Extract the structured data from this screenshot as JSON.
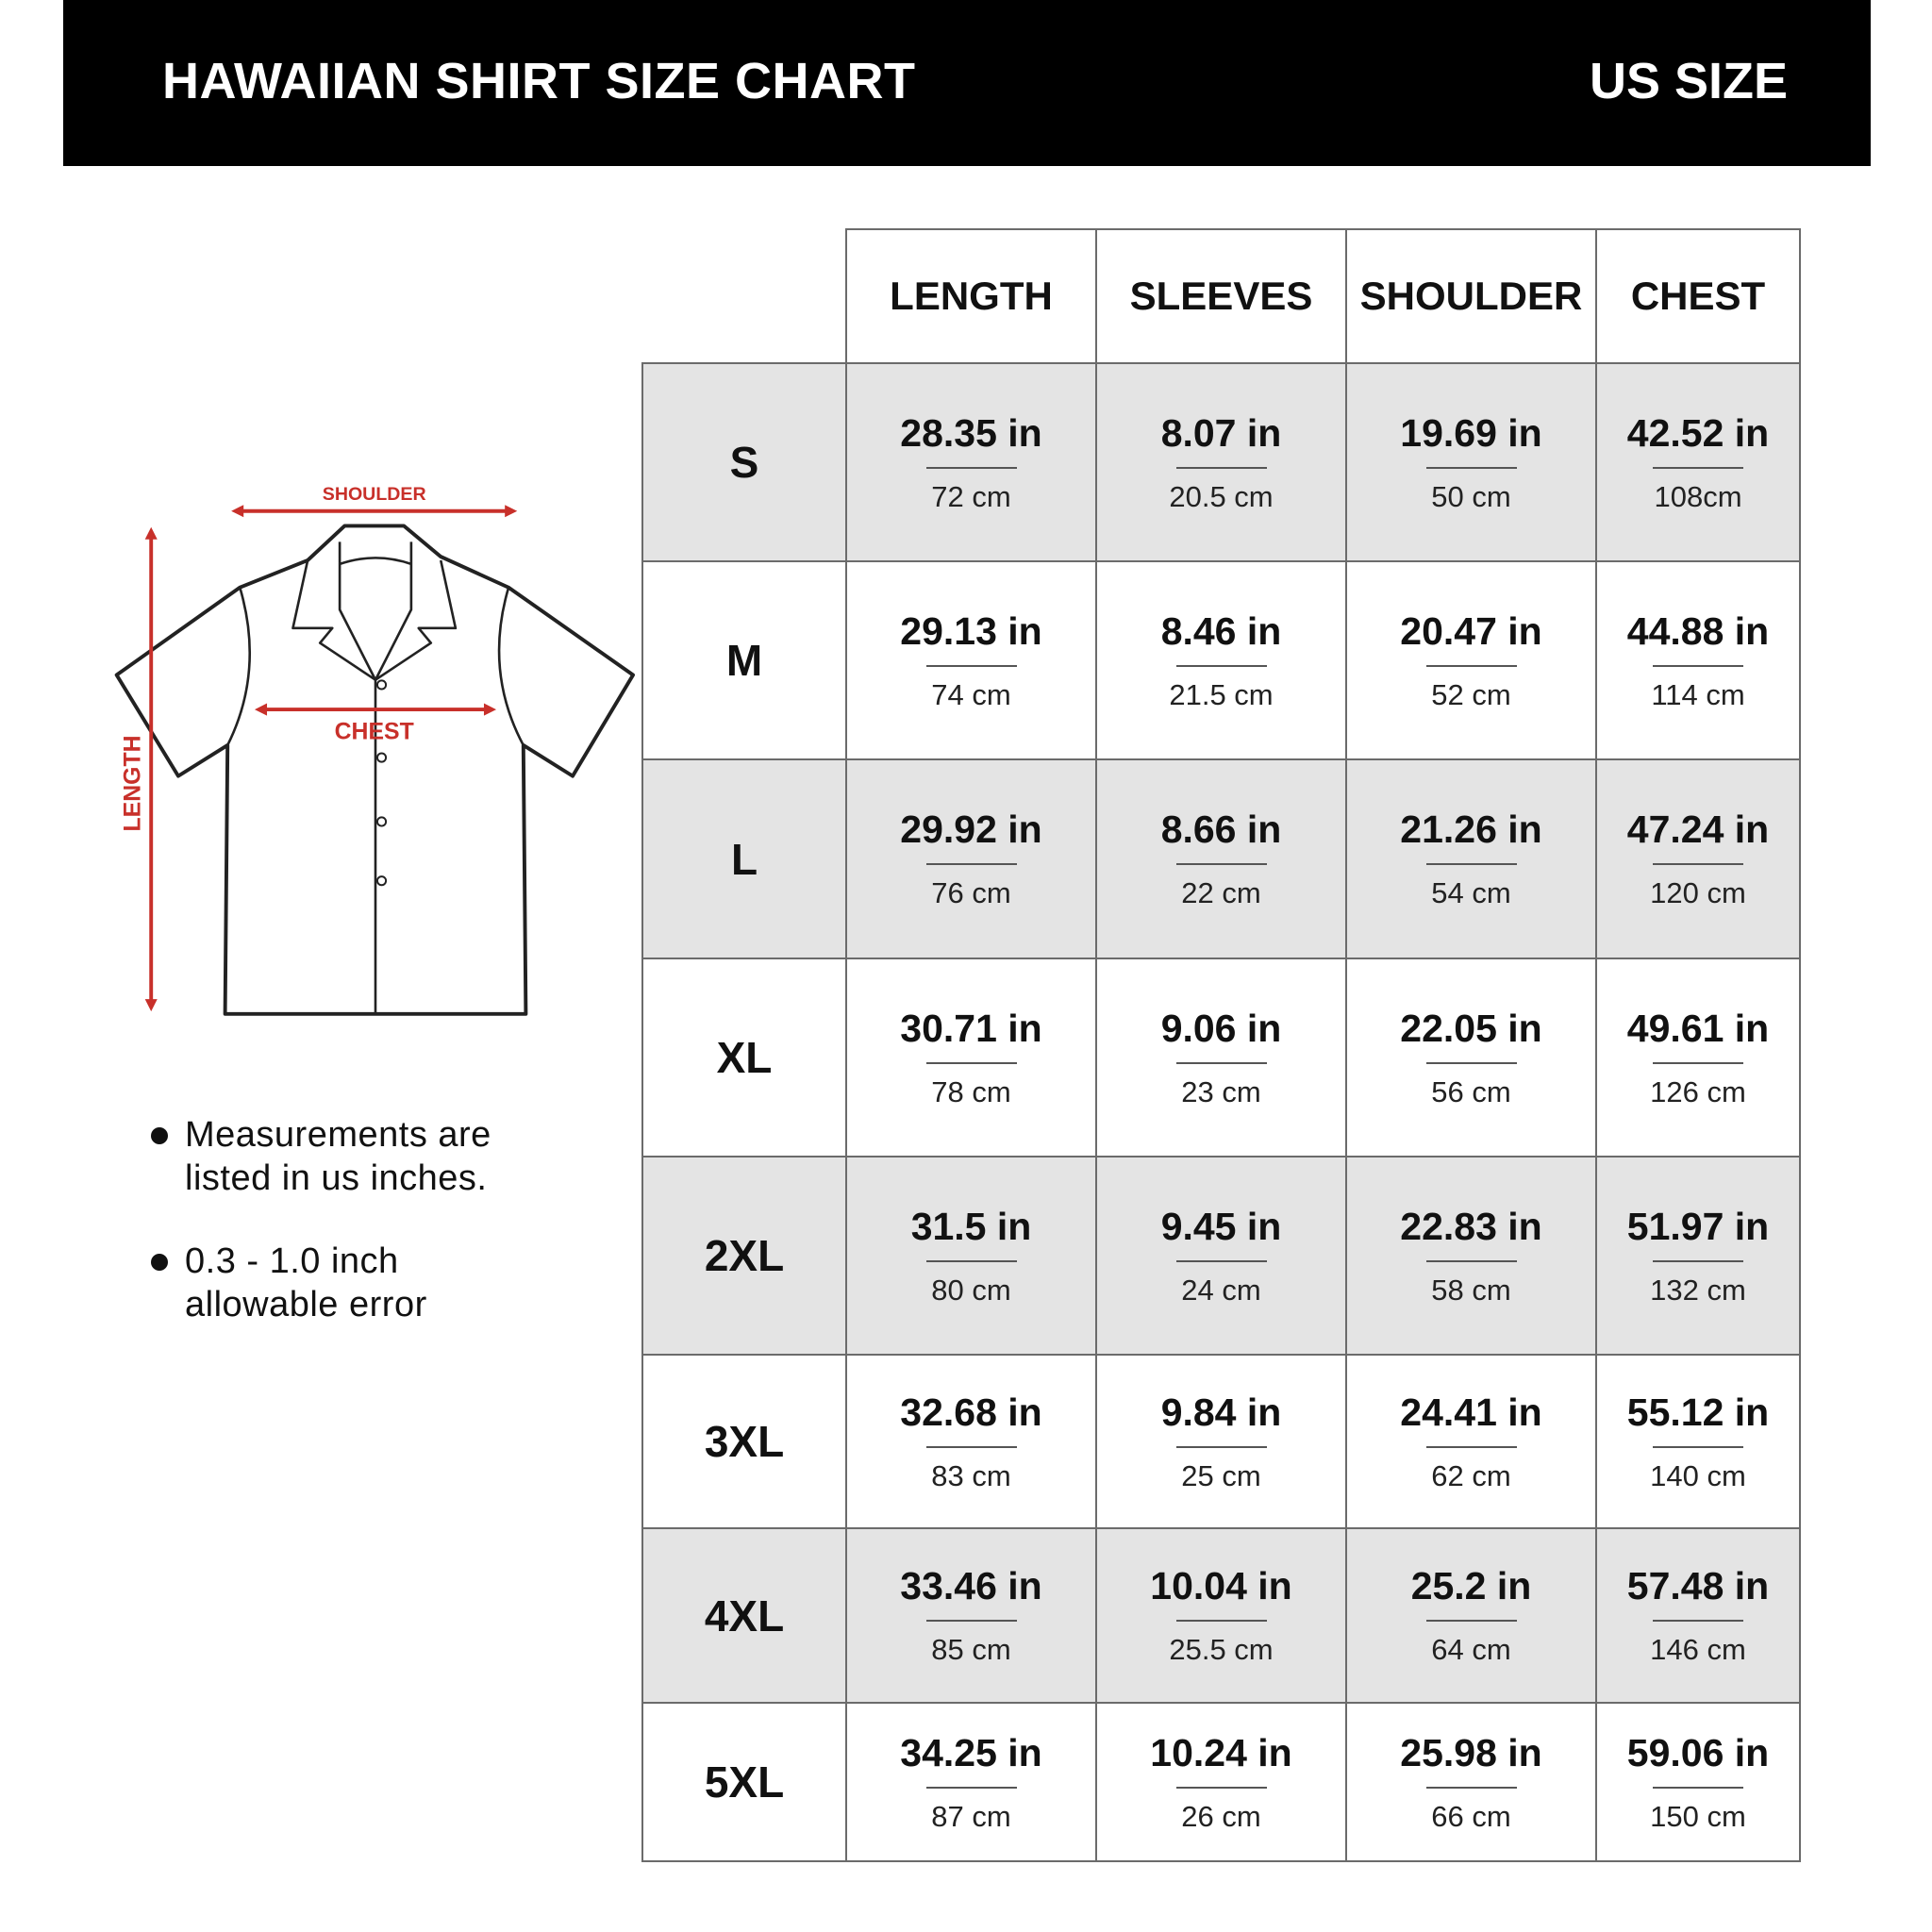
{
  "header": {
    "title": "HAWAIIAN SHIRT SIZE CHART",
    "region": "US SIZE"
  },
  "diagram": {
    "shoulder_label": "SHOULDER",
    "chest_label": "CHEST",
    "length_label": "LENGTH",
    "accent_color": "#c8302a"
  },
  "table": {
    "columns": [
      "LENGTH",
      "SLEEVES",
      "SHOULDER",
      "CHEST"
    ],
    "rows": [
      {
        "size": "S",
        "cells": [
          [
            "28.35 in",
            "72 cm"
          ],
          [
            "8.07 in",
            "20.5 cm"
          ],
          [
            "19.69 in",
            "50 cm"
          ],
          [
            "42.52 in",
            "108cm"
          ]
        ]
      },
      {
        "size": "M",
        "cells": [
          [
            "29.13 in",
            "74 cm"
          ],
          [
            "8.46 in",
            "21.5 cm"
          ],
          [
            "20.47 in",
            "52 cm"
          ],
          [
            "44.88 in",
            "114 cm"
          ]
        ]
      },
      {
        "size": "L",
        "cells": [
          [
            "29.92 in",
            "76 cm"
          ],
          [
            "8.66 in",
            "22 cm"
          ],
          [
            "21.26 in",
            "54 cm"
          ],
          [
            "47.24 in",
            "120 cm"
          ]
        ]
      },
      {
        "size": "XL",
        "cells": [
          [
            "30.71 in",
            "78 cm"
          ],
          [
            "9.06 in",
            "23 cm"
          ],
          [
            "22.05 in",
            "56 cm"
          ],
          [
            "49.61 in",
            "126 cm"
          ]
        ]
      },
      {
        "size": "2XL",
        "cells": [
          [
            "31.5 in",
            "80 cm"
          ],
          [
            "9.45 in",
            "24 cm"
          ],
          [
            "22.83 in",
            "58 cm"
          ],
          [
            "51.97 in",
            "132 cm"
          ]
        ]
      },
      {
        "size": "3XL",
        "cells": [
          [
            "32.68 in",
            "83 cm"
          ],
          [
            "9.84 in",
            "25 cm"
          ],
          [
            "24.41 in",
            "62 cm"
          ],
          [
            "55.12 in",
            "140 cm"
          ]
        ]
      },
      {
        "size": "4XL",
        "cells": [
          [
            "33.46 in",
            "85 cm"
          ],
          [
            "10.04 in",
            "25.5 cm"
          ],
          [
            "25.2 in",
            "64 cm"
          ],
          [
            "57.48 in",
            "146 cm"
          ]
        ]
      },
      {
        "size": "5XL",
        "cells": [
          [
            "34.25 in",
            "87 cm"
          ],
          [
            "10.24 in",
            "26 cm"
          ],
          [
            "25.98 in",
            "66 cm"
          ],
          [
            "59.06 in",
            "150 cm"
          ]
        ]
      }
    ]
  },
  "notes": [
    {
      "line1": "Measurements are",
      "line2": "listed in us inches."
    },
    {
      "line1": "0.3 - 1.0 inch",
      "line2": "allowable error"
    }
  ]
}
